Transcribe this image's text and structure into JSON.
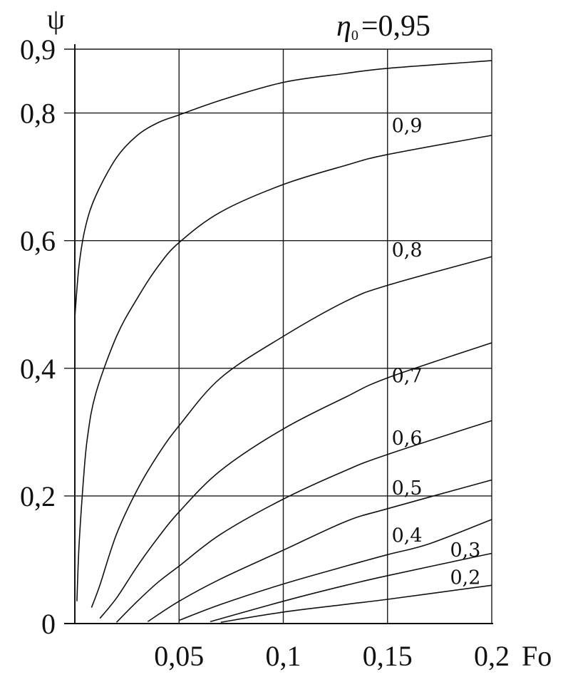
{
  "chart_data": {
    "type": "line",
    "title": "",
    "parameter_label": {
      "symbol": "η",
      "subscript": "0",
      "value_text": "=0,95"
    },
    "xlabel": "Fo",
    "ylabel": "ψ",
    "xlim": [
      0,
      0.2
    ],
    "ylim": [
      0,
      0.9
    ],
    "x_ticks": [
      {
        "value": 0.05,
        "label": "0,05"
      },
      {
        "value": 0.1,
        "label": "0,1"
      },
      {
        "value": 0.15,
        "label": "0,15"
      },
      {
        "value": 0.2,
        "label": "0,2"
      }
    ],
    "y_ticks": [
      {
        "value": 0,
        "label": "0"
      },
      {
        "value": 0.2,
        "label": "0,2"
      },
      {
        "value": 0.4,
        "label": "0,4"
      },
      {
        "value": 0.6,
        "label": "0,6"
      },
      {
        "value": 0.8,
        "label": "0,8"
      },
      {
        "value": 0.9,
        "label": "0,9"
      }
    ],
    "grid": true,
    "series": [
      {
        "id": "s095",
        "name": "",
        "label_anchor": null,
        "points": [
          [
            0,
            0.48
          ],
          [
            0.002,
            0.56
          ],
          [
            0.005,
            0.62
          ],
          [
            0.01,
            0.67
          ],
          [
            0.02,
            0.73
          ],
          [
            0.03,
            0.765
          ],
          [
            0.04,
            0.785
          ],
          [
            0.05,
            0.797
          ],
          [
            0.07,
            0.82
          ],
          [
            0.1,
            0.848
          ],
          [
            0.13,
            0.862
          ],
          [
            0.15,
            0.87
          ],
          [
            0.2,
            0.882
          ]
        ]
      },
      {
        "id": "s09",
        "name": "0,9",
        "label_anchor": [
          0.152,
          0.77
        ],
        "points": [
          [
            0.001,
            0.035
          ],
          [
            0.002,
            0.12
          ],
          [
            0.004,
            0.22
          ],
          [
            0.006,
            0.29
          ],
          [
            0.01,
            0.36
          ],
          [
            0.02,
            0.45
          ],
          [
            0.03,
            0.51
          ],
          [
            0.04,
            0.56
          ],
          [
            0.05,
            0.597
          ],
          [
            0.07,
            0.645
          ],
          [
            0.1,
            0.688
          ],
          [
            0.13,
            0.718
          ],
          [
            0.15,
            0.735
          ],
          [
            0.2,
            0.765
          ]
        ]
      },
      {
        "id": "s08",
        "name": "0,8",
        "label_anchor": [
          0.152,
          0.575
        ],
        "points": [
          [
            0.008,
            0.025
          ],
          [
            0.012,
            0.06
          ],
          [
            0.02,
            0.14
          ],
          [
            0.03,
            0.21
          ],
          [
            0.04,
            0.265
          ],
          [
            0.05,
            0.31
          ],
          [
            0.07,
            0.385
          ],
          [
            0.1,
            0.45
          ],
          [
            0.13,
            0.505
          ],
          [
            0.15,
            0.53
          ],
          [
            0.2,
            0.575
          ]
        ]
      },
      {
        "id": "s07",
        "name": "0,7",
        "label_anchor": [
          0.152,
          0.378
        ],
        "points": [
          [
            0.012,
            0.008
          ],
          [
            0.02,
            0.04
          ],
          [
            0.03,
            0.09
          ],
          [
            0.04,
            0.135
          ],
          [
            0.05,
            0.175
          ],
          [
            0.07,
            0.24
          ],
          [
            0.1,
            0.305
          ],
          [
            0.13,
            0.355
          ],
          [
            0.15,
            0.385
          ],
          [
            0.2,
            0.44
          ]
        ]
      },
      {
        "id": "s06",
        "name": "0,6",
        "label_anchor": [
          0.152,
          0.28
        ],
        "points": [
          [
            0.02,
            0.002
          ],
          [
            0.03,
            0.035
          ],
          [
            0.04,
            0.065
          ],
          [
            0.05,
            0.09
          ],
          [
            0.07,
            0.14
          ],
          [
            0.1,
            0.195
          ],
          [
            0.13,
            0.24
          ],
          [
            0.15,
            0.265
          ],
          [
            0.2,
            0.318
          ]
        ]
      },
      {
        "id": "s05",
        "name": "0,5",
        "label_anchor": [
          0.152,
          0.202
        ],
        "points": [
          [
            0.035,
            0.003
          ],
          [
            0.05,
            0.035
          ],
          [
            0.07,
            0.07
          ],
          [
            0.1,
            0.115
          ],
          [
            0.13,
            0.16
          ],
          [
            0.15,
            0.18
          ],
          [
            0.2,
            0.225
          ]
        ]
      },
      {
        "id": "s04",
        "name": "0,4",
        "label_anchor": [
          0.152,
          0.128
        ],
        "points": [
          [
            0.05,
            0.005
          ],
          [
            0.07,
            0.03
          ],
          [
            0.1,
            0.062
          ],
          [
            0.13,
            0.09
          ],
          [
            0.15,
            0.108
          ],
          [
            0.17,
            0.125
          ],
          [
            0.2,
            0.163
          ]
        ]
      },
      {
        "id": "s03",
        "name": "0,3",
        "label_anchor": [
          0.18,
          0.105
        ],
        "points": [
          [
            0.065,
            0.003
          ],
          [
            0.1,
            0.035
          ],
          [
            0.13,
            0.06
          ],
          [
            0.15,
            0.075
          ],
          [
            0.2,
            0.11
          ]
        ]
      },
      {
        "id": "s02",
        "name": "0,2",
        "label_anchor": [
          0.18,
          0.062
        ],
        "points": [
          [
            0.07,
            0.002
          ],
          [
            0.1,
            0.018
          ],
          [
            0.13,
            0.03
          ],
          [
            0.15,
            0.038
          ],
          [
            0.2,
            0.06
          ]
        ]
      }
    ]
  }
}
